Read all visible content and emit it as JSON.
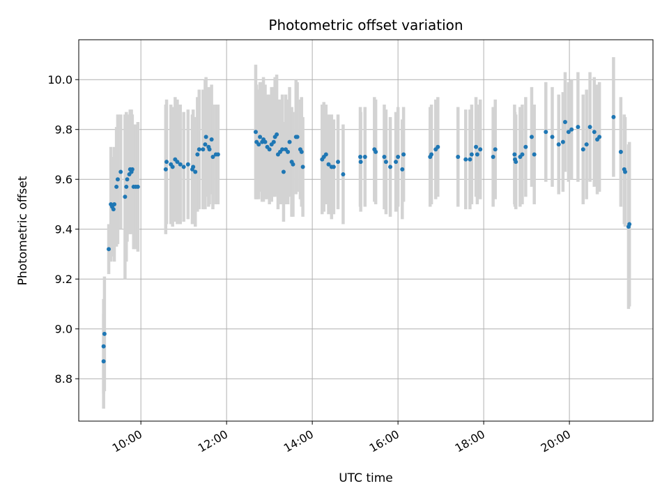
{
  "chart_data": {
    "type": "scatter",
    "title": "Photometric offset variation",
    "xlabel": "UTC time",
    "ylabel": "Photometric offset",
    "x_unit": "hours UTC",
    "xlim": [
      8.55,
      21.95
    ],
    "ylim": [
      8.63,
      10.16
    ],
    "xticks": [
      10,
      12,
      14,
      16,
      18,
      20
    ],
    "xtick_labels": [
      "10:00",
      "12:00",
      "14:00",
      "16:00",
      "18:00",
      "20:00"
    ],
    "yticks": [
      8.8,
      9.0,
      9.2,
      9.4,
      9.6,
      9.8,
      10.0
    ],
    "ytick_labels": [
      "8.8",
      "9.0",
      "9.2",
      "9.4",
      "9.6",
      "9.8",
      "10.0"
    ],
    "grid": true,
    "colors": {
      "points": "#1f77b4",
      "errorbars": "#d3d3d3",
      "grid": "#b0b0b0"
    },
    "series": [
      {
        "points": [
          [
            9.13,
            8.87,
            0.19
          ],
          [
            9.13,
            8.93,
            0.19
          ],
          [
            9.15,
            8.98,
            0.23
          ],
          [
            9.25,
            9.32,
            0.1
          ],
          [
            9.3,
            9.5,
            0.23
          ],
          [
            9.33,
            9.49,
            0.2
          ],
          [
            9.36,
            9.48,
            0.18
          ],
          [
            9.38,
            9.5,
            0.23
          ],
          [
            9.43,
            9.57,
            0.24
          ],
          [
            9.46,
            9.6,
            0.26
          ],
          [
            9.53,
            9.63,
            0.23
          ],
          [
            9.63,
            9.53,
            0.33
          ],
          [
            9.66,
            9.57,
            0.3
          ],
          [
            9.68,
            9.6,
            0.25
          ],
          [
            9.73,
            9.62,
            0.24
          ],
          [
            9.75,
            9.64,
            0.24
          ],
          [
            9.78,
            9.63,
            0.25
          ],
          [
            9.8,
            9.64,
            0.22
          ],
          [
            9.83,
            9.57,
            0.25
          ],
          [
            9.88,
            9.57,
            0.25
          ],
          [
            9.93,
            9.57,
            0.26
          ],
          [
            10.58,
            9.64,
            0.26
          ],
          [
            10.6,
            9.67,
            0.25
          ],
          [
            10.7,
            9.66,
            0.24
          ],
          [
            10.74,
            9.65,
            0.24
          ],
          [
            10.8,
            9.68,
            0.25
          ],
          [
            10.85,
            9.67,
            0.25
          ],
          [
            10.92,
            9.66,
            0.24
          ],
          [
            11.0,
            9.65,
            0.22
          ],
          [
            11.1,
            9.66,
            0.22
          ],
          [
            11.2,
            9.64,
            0.22
          ],
          [
            11.22,
            9.65,
            0.23
          ],
          [
            11.27,
            9.63,
            0.22
          ],
          [
            11.32,
            9.7,
            0.23
          ],
          [
            11.36,
            9.72,
            0.24
          ],
          [
            11.45,
            9.72,
            0.24
          ],
          [
            11.5,
            9.74,
            0.26
          ],
          [
            11.52,
            9.77,
            0.24
          ],
          [
            11.58,
            9.73,
            0.24
          ],
          [
            11.6,
            9.72,
            0.22
          ],
          [
            11.65,
            9.76,
            0.22
          ],
          [
            11.68,
            9.69,
            0.21
          ],
          [
            11.75,
            9.7,
            0.2
          ],
          [
            11.8,
            9.7,
            0.2
          ],
          [
            12.68,
            9.79,
            0.27
          ],
          [
            12.7,
            9.75,
            0.23
          ],
          [
            12.75,
            9.74,
            0.22
          ],
          [
            12.78,
            9.77,
            0.22
          ],
          [
            12.83,
            9.75,
            0.24
          ],
          [
            12.86,
            9.76,
            0.25
          ],
          [
            12.9,
            9.75,
            0.23
          ],
          [
            12.95,
            9.73,
            0.21
          ],
          [
            13.0,
            9.72,
            0.22
          ],
          [
            13.05,
            9.74,
            0.23
          ],
          [
            13.1,
            9.75,
            0.22
          ],
          [
            13.13,
            9.77,
            0.24
          ],
          [
            13.17,
            9.78,
            0.24
          ],
          [
            13.2,
            9.7,
            0.22
          ],
          [
            13.25,
            9.71,
            0.21
          ],
          [
            13.3,
            9.72,
            0.22
          ],
          [
            13.33,
            9.63,
            0.2
          ],
          [
            13.38,
            9.72,
            0.22
          ],
          [
            13.43,
            9.71,
            0.21
          ],
          [
            13.47,
            9.75,
            0.22
          ],
          [
            13.52,
            9.67,
            0.22
          ],
          [
            13.55,
            9.66,
            0.21
          ],
          [
            13.62,
            9.77,
            0.23
          ],
          [
            13.65,
            9.77,
            0.22
          ],
          [
            13.72,
            9.72,
            0.2
          ],
          [
            13.75,
            9.71,
            0.22
          ],
          [
            13.78,
            9.65,
            0.2
          ],
          [
            14.23,
            9.68,
            0.22
          ],
          [
            14.27,
            9.69,
            0.22
          ],
          [
            14.32,
            9.7,
            0.2
          ],
          [
            14.38,
            9.66,
            0.2
          ],
          [
            14.45,
            9.65,
            0.21
          ],
          [
            14.5,
            9.65,
            0.19
          ],
          [
            14.6,
            9.67,
            0.19
          ],
          [
            14.72,
            9.62,
            0.2
          ],
          [
            15.12,
            9.69,
            0.2
          ],
          [
            15.13,
            9.67,
            0.2
          ],
          [
            15.23,
            9.69,
            0.2
          ],
          [
            15.45,
            9.72,
            0.21
          ],
          [
            15.48,
            9.71,
            0.21
          ],
          [
            15.68,
            9.69,
            0.21
          ],
          [
            15.72,
            9.67,
            0.21
          ],
          [
            15.82,
            9.65,
            0.2
          ],
          [
            15.95,
            9.67,
            0.2
          ],
          [
            16.0,
            9.69,
            0.2
          ],
          [
            16.1,
            9.64,
            0.2
          ],
          [
            16.13,
            9.7,
            0.19
          ],
          [
            16.75,
            9.69,
            0.2
          ],
          [
            16.78,
            9.7,
            0.2
          ],
          [
            16.88,
            9.72,
            0.2
          ],
          [
            16.93,
            9.73,
            0.2
          ],
          [
            17.4,
            9.69,
            0.2
          ],
          [
            17.58,
            9.68,
            0.2
          ],
          [
            17.68,
            9.68,
            0.2
          ],
          [
            17.72,
            9.7,
            0.2
          ],
          [
            17.82,
            9.73,
            0.2
          ],
          [
            17.85,
            9.7,
            0.2
          ],
          [
            17.92,
            9.72,
            0.2
          ],
          [
            18.22,
            9.69,
            0.2
          ],
          [
            18.27,
            9.72,
            0.2
          ],
          [
            18.72,
            9.7,
            0.2
          ],
          [
            18.73,
            9.68,
            0.19
          ],
          [
            18.75,
            9.67,
            0.19
          ],
          [
            18.85,
            9.69,
            0.2
          ],
          [
            18.9,
            9.7,
            0.2
          ],
          [
            18.98,
            9.73,
            0.2
          ],
          [
            19.12,
            9.77,
            0.2
          ],
          [
            19.18,
            9.7,
            0.2
          ],
          [
            19.45,
            9.79,
            0.2
          ],
          [
            19.6,
            9.77,
            0.2
          ],
          [
            19.75,
            9.74,
            0.2
          ],
          [
            19.85,
            9.75,
            0.2
          ],
          [
            19.9,
            9.83,
            0.2
          ],
          [
            19.98,
            9.79,
            0.2
          ],
          [
            20.05,
            9.8,
            0.2
          ],
          [
            20.2,
            9.81,
            0.22
          ],
          [
            20.32,
            9.72,
            0.22
          ],
          [
            20.4,
            9.74,
            0.22
          ],
          [
            20.48,
            9.81,
            0.22
          ],
          [
            20.58,
            9.79,
            0.22
          ],
          [
            20.65,
            9.76,
            0.22
          ],
          [
            20.7,
            9.77,
            0.22
          ],
          [
            21.03,
            9.85,
            0.24
          ],
          [
            21.2,
            9.71,
            0.22
          ],
          [
            21.28,
            9.64,
            0.22
          ],
          [
            21.3,
            9.63,
            0.22
          ],
          [
            21.38,
            9.41,
            0.33
          ],
          [
            21.4,
            9.42,
            0.33
          ]
        ]
      }
    ]
  }
}
